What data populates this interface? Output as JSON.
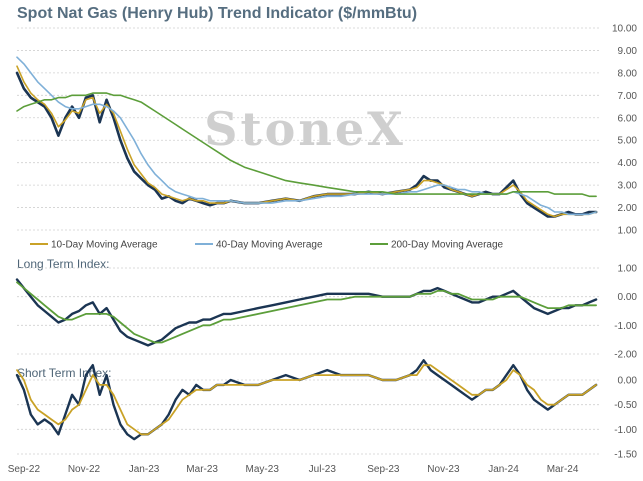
{
  "title": "Spot Nat Gas (Henry Hub) Trend Indicator ($/mmBtu)",
  "watermark": "StoneX",
  "panels": {
    "long_label": "Long Term Index:",
    "short_label": "Short Term Index:"
  },
  "colors": {
    "spot": "#1b3553",
    "ma10": "#c9a227",
    "ma40": "#7fb0d8",
    "ma200": "#5c9e3a",
    "grid": "#d0d0d0"
  },
  "chart_data": [
    {
      "type": "line",
      "title": "Spot Nat Gas (Henry Hub) Trend Indicator ($/mmBtu)",
      "ylim": [
        1.0,
        10.0
      ],
      "yticks": [
        "1.00",
        "2.00",
        "3.00",
        "4.00",
        "5.00",
        "6.00",
        "7.00",
        "8.00",
        "9.00",
        "10.00"
      ],
      "xticks": [
        "Sep-22",
        "Nov-22",
        "Jan-23",
        "Mar-23",
        "May-23",
        "Jul-23",
        "Sep-23",
        "Nov-23",
        "Jan-24",
        "Mar-24"
      ],
      "legend": [
        "10-Day Moving Average",
        "40-Day Moving Average",
        "200-Day Moving Average"
      ],
      "x": [
        "2022-08-25",
        "2022-09-01",
        "2022-09-08",
        "2022-09-15",
        "2022-09-22",
        "2022-09-29",
        "2022-10-06",
        "2022-10-13",
        "2022-10-20",
        "2022-10-27",
        "2022-11-03",
        "2022-11-10",
        "2022-11-17",
        "2022-11-24",
        "2022-12-01",
        "2022-12-08",
        "2022-12-15",
        "2022-12-22",
        "2022-12-29",
        "2023-01-05",
        "2023-01-12",
        "2023-01-19",
        "2023-01-26",
        "2023-02-02",
        "2023-02-09",
        "2023-02-16",
        "2023-02-23",
        "2023-03-02",
        "2023-03-09",
        "2023-03-16",
        "2023-03-23",
        "2023-03-30",
        "2023-04-13",
        "2023-04-27",
        "2023-05-11",
        "2023-05-25",
        "2023-06-08",
        "2023-06-22",
        "2023-07-06",
        "2023-07-20",
        "2023-08-03",
        "2023-08-17",
        "2023-08-31",
        "2023-09-14",
        "2023-09-28",
        "2023-10-05",
        "2023-10-12",
        "2023-10-19",
        "2023-10-26",
        "2023-11-02",
        "2023-11-09",
        "2023-11-16",
        "2023-11-23",
        "2023-11-30",
        "2023-12-07",
        "2023-12-14",
        "2023-12-21",
        "2023-12-28",
        "2024-01-04",
        "2024-01-11",
        "2024-01-18",
        "2024-01-25",
        "2024-02-01",
        "2024-02-08",
        "2024-02-15",
        "2024-02-22",
        "2024-02-29",
        "2024-03-07",
        "2024-03-14",
        "2024-03-21",
        "2024-03-28",
        "2024-04-04"
      ],
      "series": [
        {
          "values": [
            8.0,
            7.3,
            6.9,
            6.7,
            6.5,
            6.0,
            5.2,
            6.0,
            6.5,
            6.0,
            6.9,
            7.0,
            5.8,
            6.8,
            6.0,
            5.0,
            4.2,
            3.6,
            3.3,
            3.0,
            2.8,
            2.4,
            2.5,
            2.3,
            2.2,
            2.4,
            2.3,
            2.2,
            2.1,
            2.2,
            2.2,
            2.3,
            2.2,
            2.2,
            2.3,
            2.4,
            2.3,
            2.5,
            2.6,
            2.6,
            2.6,
            2.7,
            2.6,
            2.7,
            2.8,
            3.0,
            3.4,
            3.2,
            3.2,
            2.9,
            2.8,
            2.7,
            2.6,
            2.5,
            2.6,
            2.7,
            2.6,
            2.6,
            2.9,
            3.2,
            2.6,
            2.2,
            2.0,
            1.8,
            1.6,
            1.6,
            1.7,
            1.8,
            1.7,
            1.7,
            1.8,
            1.8
          ]
        },
        {
          "name": "10-Day Moving Average",
          "values": [
            8.3,
            7.6,
            7.1,
            6.8,
            6.6,
            6.2,
            5.6,
            5.9,
            6.3,
            6.2,
            6.8,
            6.9,
            6.2,
            6.6,
            6.2,
            5.4,
            4.6,
            3.9,
            3.5,
            3.1,
            2.9,
            2.6,
            2.5,
            2.4,
            2.3,
            2.4,
            2.3,
            2.3,
            2.2,
            2.2,
            2.2,
            2.3,
            2.2,
            2.2,
            2.3,
            2.4,
            2.3,
            2.5,
            2.6,
            2.6,
            2.6,
            2.7,
            2.6,
            2.7,
            2.8,
            2.9,
            3.2,
            3.2,
            3.1,
            3.0,
            2.8,
            2.7,
            2.6,
            2.5,
            2.6,
            2.6,
            2.6,
            2.6,
            2.8,
            3.0,
            2.7,
            2.3,
            2.1,
            1.9,
            1.7,
            1.6,
            1.7,
            1.7,
            1.7,
            1.7,
            1.7,
            1.8
          ]
        },
        {
          "name": "40-Day Moving Average",
          "values": [
            8.7,
            8.4,
            8.0,
            7.6,
            7.3,
            7.0,
            6.7,
            6.5,
            6.4,
            6.4,
            6.5,
            6.6,
            6.6,
            6.5,
            6.3,
            6.0,
            5.5,
            5.0,
            4.4,
            3.9,
            3.5,
            3.2,
            2.9,
            2.7,
            2.6,
            2.5,
            2.4,
            2.4,
            2.3,
            2.3,
            2.3,
            2.3,
            2.2,
            2.2,
            2.2,
            2.3,
            2.3,
            2.4,
            2.5,
            2.5,
            2.6,
            2.6,
            2.6,
            2.6,
            2.7,
            2.7,
            2.8,
            2.9,
            3.0,
            3.0,
            2.9,
            2.8,
            2.8,
            2.7,
            2.7,
            2.6,
            2.6,
            2.6,
            2.6,
            2.7,
            2.6,
            2.5,
            2.3,
            2.1,
            2.0,
            1.8,
            1.8,
            1.7,
            1.7,
            1.7,
            1.7,
            1.8
          ]
        },
        {
          "name": "200-Day Moving Average",
          "values": [
            6.3,
            6.5,
            6.6,
            6.7,
            6.8,
            6.8,
            6.9,
            6.9,
            7.0,
            7.0,
            7.0,
            7.1,
            7.1,
            7.1,
            7.0,
            7.0,
            6.9,
            6.8,
            6.7,
            6.5,
            6.3,
            6.1,
            5.9,
            5.7,
            5.5,
            5.3,
            5.1,
            4.9,
            4.7,
            4.5,
            4.3,
            4.1,
            3.8,
            3.6,
            3.4,
            3.2,
            3.1,
            3.0,
            2.9,
            2.8,
            2.7,
            2.7,
            2.7,
            2.6,
            2.6,
            2.6,
            2.6,
            2.6,
            2.6,
            2.6,
            2.6,
            2.6,
            2.6,
            2.6,
            2.6,
            2.6,
            2.6,
            2.6,
            2.6,
            2.7,
            2.7,
            2.7,
            2.7,
            2.7,
            2.7,
            2.6,
            2.6,
            2.6,
            2.6,
            2.6,
            2.5,
            2.5
          ]
        }
      ]
    },
    {
      "type": "line",
      "title": "Long Term Index:",
      "ylim": [
        -2.0,
        1.0
      ],
      "yticks": [
        "-2.00",
        "-1.00",
        "0.00",
        "1.00"
      ],
      "series": [
        {
          "values": [
            0.6,
            0.3,
            0.0,
            -0.3,
            -0.5,
            -0.7,
            -0.9,
            -0.8,
            -0.6,
            -0.5,
            -0.3,
            -0.2,
            -0.6,
            -0.4,
            -0.8,
            -1.2,
            -1.4,
            -1.5,
            -1.6,
            -1.7,
            -1.6,
            -1.5,
            -1.3,
            -1.1,
            -1.0,
            -0.9,
            -0.9,
            -0.8,
            -0.8,
            -0.7,
            -0.6,
            -0.6,
            -0.5,
            -0.4,
            -0.3,
            -0.2,
            -0.1,
            0.0,
            0.1,
            0.1,
            0.1,
            0.1,
            0.0,
            0.0,
            0.0,
            0.1,
            0.2,
            0.2,
            0.3,
            0.2,
            0.1,
            0.0,
            -0.1,
            -0.2,
            -0.2,
            -0.1,
            0.0,
            0.0,
            0.1,
            0.2,
            0.0,
            -0.2,
            -0.4,
            -0.5,
            -0.6,
            -0.5,
            -0.4,
            -0.4,
            -0.3,
            -0.3,
            -0.2,
            -0.1
          ]
        },
        {
          "values": [
            0.5,
            0.3,
            0.1,
            -0.1,
            -0.3,
            -0.5,
            -0.7,
            -0.8,
            -0.8,
            -0.7,
            -0.6,
            -0.6,
            -0.6,
            -0.6,
            -0.7,
            -0.9,
            -1.1,
            -1.3,
            -1.4,
            -1.5,
            -1.6,
            -1.6,
            -1.5,
            -1.4,
            -1.3,
            -1.2,
            -1.1,
            -1.0,
            -1.0,
            -0.9,
            -0.8,
            -0.8,
            -0.7,
            -0.6,
            -0.5,
            -0.4,
            -0.3,
            -0.2,
            -0.1,
            -0.1,
            0.0,
            0.0,
            0.0,
            0.0,
            0.0,
            0.1,
            0.1,
            0.1,
            0.2,
            0.2,
            0.1,
            0.1,
            0.0,
            -0.1,
            -0.1,
            -0.1,
            -0.1,
            0.0,
            0.0,
            0.0,
            0.0,
            -0.1,
            -0.2,
            -0.3,
            -0.4,
            -0.4,
            -0.4,
            -0.3,
            -0.3,
            -0.3,
            -0.3,
            -0.3
          ]
        }
      ]
    },
    {
      "type": "line",
      "title": "Short Term Index:",
      "ylim": [
        -1.5,
        0.0
      ],
      "yticks": [
        "-1.50",
        "-1.00",
        "-0.50",
        "0.00"
      ],
      "series": [
        {
          "values": [
            0.1,
            -0.2,
            -0.7,
            -0.9,
            -0.8,
            -0.9,
            -1.1,
            -0.7,
            -0.3,
            -0.5,
            0.1,
            0.3,
            -0.3,
            0.1,
            -0.5,
            -0.9,
            -1.1,
            -1.2,
            -1.1,
            -1.1,
            -1.0,
            -0.9,
            -0.7,
            -0.4,
            -0.2,
            -0.3,
            -0.1,
            -0.2,
            -0.2,
            -0.1,
            -0.1,
            0.0,
            -0.1,
            -0.1,
            0.0,
            0.1,
            0.0,
            0.1,
            0.2,
            0.1,
            0.1,
            0.1,
            0.0,
            0.0,
            0.1,
            0.2,
            0.4,
            0.2,
            0.1,
            0.0,
            -0.1,
            -0.2,
            -0.3,
            -0.4,
            -0.3,
            -0.2,
            -0.2,
            -0.1,
            0.1,
            0.3,
            0.1,
            -0.2,
            -0.4,
            -0.5,
            -0.6,
            -0.5,
            -0.4,
            -0.3,
            -0.3,
            -0.3,
            -0.2,
            -0.1
          ]
        },
        {
          "values": [
            0.2,
            0.0,
            -0.4,
            -0.6,
            -0.7,
            -0.8,
            -0.9,
            -0.8,
            -0.6,
            -0.5,
            -0.2,
            0.1,
            -0.1,
            -0.1,
            -0.3,
            -0.6,
            -0.9,
            -1.0,
            -1.1,
            -1.1,
            -1.0,
            -0.9,
            -0.8,
            -0.6,
            -0.4,
            -0.3,
            -0.2,
            -0.2,
            -0.2,
            -0.1,
            -0.1,
            -0.1,
            -0.1,
            -0.1,
            0.0,
            0.0,
            0.0,
            0.1,
            0.1,
            0.1,
            0.1,
            0.1,
            0.0,
            0.0,
            0.1,
            0.1,
            0.3,
            0.3,
            0.2,
            0.1,
            0.0,
            -0.1,
            -0.2,
            -0.3,
            -0.3,
            -0.2,
            -0.2,
            -0.1,
            0.0,
            0.2,
            0.1,
            -0.1,
            -0.2,
            -0.4,
            -0.5,
            -0.5,
            -0.4,
            -0.3,
            -0.3,
            -0.3,
            -0.2,
            -0.1
          ]
        }
      ]
    }
  ]
}
